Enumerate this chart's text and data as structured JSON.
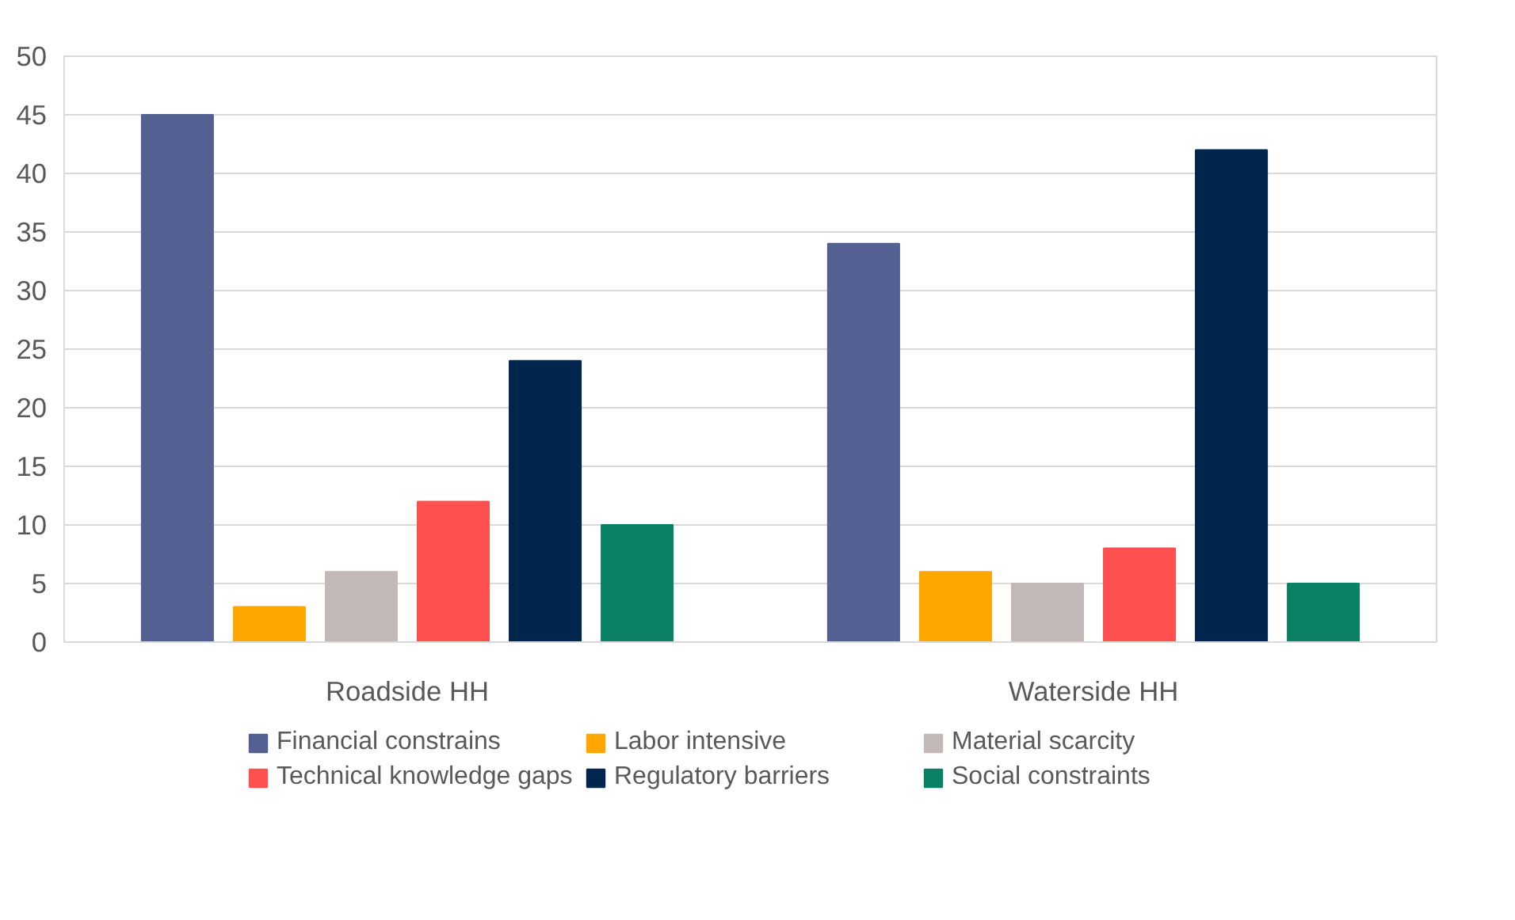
{
  "chart_data": {
    "type": "bar",
    "categories": [
      "Roadside HH",
      "Waterside HH"
    ],
    "series": [
      {
        "name": "Financial constrains",
        "color": "#536091",
        "values": [
          45,
          34
        ]
      },
      {
        "name": "Labor intensive",
        "color": "#ffa600",
        "values": [
          3,
          6
        ]
      },
      {
        "name": "Material scarcity",
        "color": "#c3b8b8",
        "values": [
          6,
          5
        ]
      },
      {
        "name": "Technical knowledge gaps",
        "color": "#ff5050",
        "values": [
          12,
          8
        ]
      },
      {
        "name": "Regulatory barriers",
        "color": "#00264d",
        "values": [
          24,
          42
        ]
      },
      {
        "name": "Social constraints",
        "color": "#0a8165",
        "values": [
          10,
          5
        ]
      }
    ],
    "ylim": [
      0,
      50
    ],
    "yticks": [
      0,
      5,
      10,
      15,
      20,
      25,
      30,
      35,
      40,
      45,
      50
    ],
    "grid": "y",
    "legend": "bottom"
  }
}
